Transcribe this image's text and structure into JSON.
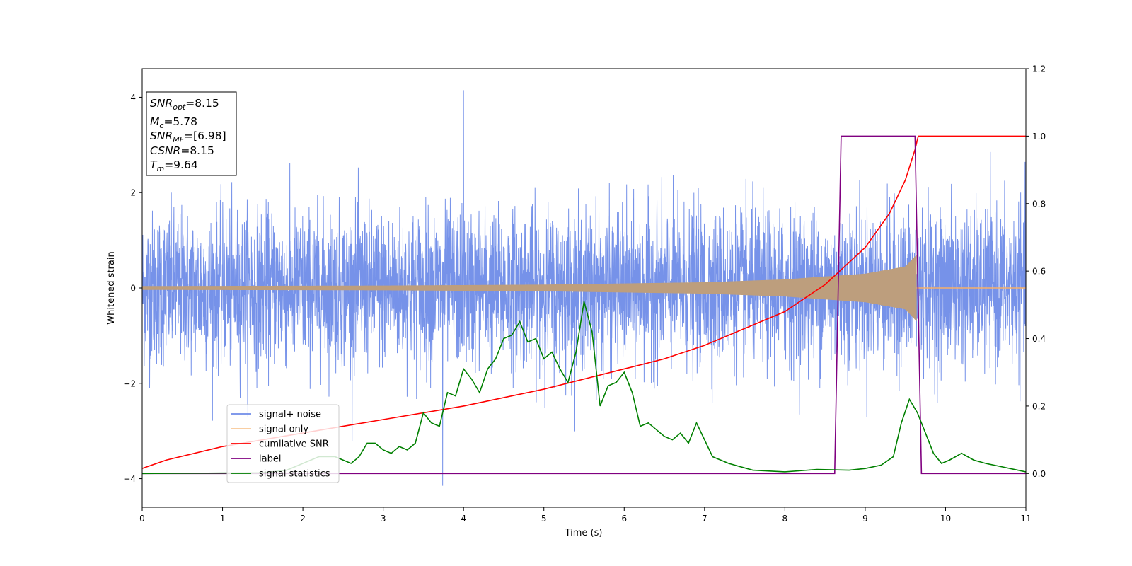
{
  "chart_data": {
    "type": "line",
    "xlabel": "Time (s)",
    "ylabel": "Whitened strain",
    "xlim": [
      0,
      11
    ],
    "ylim": [
      -4.6,
      4.6
    ],
    "y2lim": [
      -0.1,
      1.2
    ],
    "x_ticks": [
      "0",
      "1",
      "2",
      "3",
      "4",
      "5",
      "6",
      "7",
      "8",
      "9",
      "10",
      "11"
    ],
    "y_ticks": [
      "−4",
      "−2",
      "0",
      "2",
      "4"
    ],
    "y2_ticks": [
      "0.0",
      "0.2",
      "0.4",
      "0.6",
      "0.8",
      "1.0",
      "1.2"
    ],
    "grid": false,
    "legend_placement": "lower-left",
    "annotation": {
      "lines": [
        {
          "var": "SNR",
          "sub": "opt",
          "value": "=8.15"
        },
        {
          "var": "M",
          "sub": "c",
          "value": "=5.78"
        },
        {
          "var": "SNR",
          "sub": "MF",
          "value": "=[6.98]"
        },
        {
          "var": "CSNR",
          "sub": "",
          "value": "=8.15"
        },
        {
          "var": "T",
          "sub": "m",
          "value": "=9.64"
        }
      ]
    },
    "series": [
      {
        "name": "signal+ noise",
        "axis": "left",
        "color": "#6f8ce8",
        "style": "noise",
        "noise_std": 0.8,
        "noise_peak": 4.15,
        "x_range": [
          0,
          11
        ]
      },
      {
        "name": "signal only",
        "axis": "left",
        "color": "#f5b06a",
        "fill_color": "#bd9e7d",
        "style": "chirp",
        "x_range": [
          0,
          9.64
        ],
        "amplitude_points": [
          [
            0,
            0.04
          ],
          [
            3,
            0.05
          ],
          [
            5,
            0.07
          ],
          [
            7,
            0.12
          ],
          [
            8,
            0.18
          ],
          [
            9,
            0.3
          ],
          [
            9.5,
            0.45
          ],
          [
            9.64,
            0.7
          ]
        ]
      },
      {
        "name": "cumilative SNR",
        "axis": "right",
        "color": "#ff0000",
        "points": [
          [
            0,
            0.015
          ],
          [
            0.3,
            0.04
          ],
          [
            1,
            0.08
          ],
          [
            2,
            0.12
          ],
          [
            3,
            0.16
          ],
          [
            4,
            0.2
          ],
          [
            5,
            0.25
          ],
          [
            5.5,
            0.28
          ],
          [
            6,
            0.31
          ],
          [
            6.5,
            0.34
          ],
          [
            7,
            0.38
          ],
          [
            7.5,
            0.43
          ],
          [
            8,
            0.48
          ],
          [
            8.5,
            0.56
          ],
          [
            9,
            0.67
          ],
          [
            9.3,
            0.77
          ],
          [
            9.5,
            0.87
          ],
          [
            9.62,
            0.96
          ],
          [
            9.66,
            1.0
          ],
          [
            11,
            1.0
          ]
        ]
      },
      {
        "name": "label",
        "axis": "right",
        "color": "#800080",
        "points": [
          [
            0,
            0.0
          ],
          [
            8.62,
            0.0
          ],
          [
            8.7,
            1.0
          ],
          [
            9.62,
            1.0
          ],
          [
            9.7,
            0.0
          ],
          [
            11,
            0.0
          ]
        ]
      },
      {
        "name": "signal statistics",
        "axis": "right",
        "color": "#008000",
        "points": [
          [
            0,
            0.0
          ],
          [
            1.5,
            0.002
          ],
          [
            1.8,
            0.01
          ],
          [
            2.0,
            0.03
          ],
          [
            2.2,
            0.05
          ],
          [
            2.4,
            0.05
          ],
          [
            2.6,
            0.03
          ],
          [
            2.7,
            0.05
          ],
          [
            2.8,
            0.09
          ],
          [
            2.9,
            0.09
          ],
          [
            3.0,
            0.07
          ],
          [
            3.1,
            0.06
          ],
          [
            3.2,
            0.08
          ],
          [
            3.3,
            0.07
          ],
          [
            3.4,
            0.09
          ],
          [
            3.5,
            0.18
          ],
          [
            3.6,
            0.15
          ],
          [
            3.7,
            0.14
          ],
          [
            3.8,
            0.24
          ],
          [
            3.9,
            0.23
          ],
          [
            4.0,
            0.31
          ],
          [
            4.1,
            0.28
          ],
          [
            4.2,
            0.24
          ],
          [
            4.3,
            0.31
          ],
          [
            4.4,
            0.34
          ],
          [
            4.5,
            0.4
          ],
          [
            4.6,
            0.41
          ],
          [
            4.7,
            0.45
          ],
          [
            4.8,
            0.39
          ],
          [
            4.9,
            0.4
          ],
          [
            5.0,
            0.34
          ],
          [
            5.1,
            0.36
          ],
          [
            5.2,
            0.31
          ],
          [
            5.3,
            0.27
          ],
          [
            5.4,
            0.36
          ],
          [
            5.5,
            0.51
          ],
          [
            5.6,
            0.42
          ],
          [
            5.7,
            0.2
          ],
          [
            5.8,
            0.26
          ],
          [
            5.9,
            0.27
          ],
          [
            6.0,
            0.3
          ],
          [
            6.1,
            0.24
          ],
          [
            6.2,
            0.14
          ],
          [
            6.3,
            0.15
          ],
          [
            6.4,
            0.13
          ],
          [
            6.5,
            0.11
          ],
          [
            6.6,
            0.1
          ],
          [
            6.7,
            0.12
          ],
          [
            6.8,
            0.09
          ],
          [
            6.9,
            0.15
          ],
          [
            7.0,
            0.1
          ],
          [
            7.1,
            0.05
          ],
          [
            7.3,
            0.03
          ],
          [
            7.6,
            0.01
          ],
          [
            8.0,
            0.005
          ],
          [
            8.4,
            0.012
          ],
          [
            8.8,
            0.01
          ],
          [
            9.0,
            0.015
          ],
          [
            9.2,
            0.025
          ],
          [
            9.35,
            0.05
          ],
          [
            9.45,
            0.15
          ],
          [
            9.55,
            0.22
          ],
          [
            9.65,
            0.18
          ],
          [
            9.75,
            0.12
          ],
          [
            9.85,
            0.06
          ],
          [
            9.95,
            0.03
          ],
          [
            10.05,
            0.04
          ],
          [
            10.2,
            0.06
          ],
          [
            10.35,
            0.04
          ],
          [
            10.5,
            0.03
          ],
          [
            10.7,
            0.02
          ],
          [
            10.9,
            0.01
          ],
          [
            11,
            0.005
          ]
        ]
      }
    ]
  }
}
